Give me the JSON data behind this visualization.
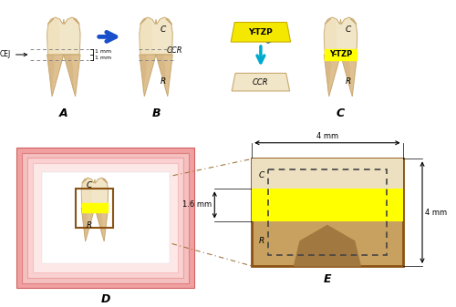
{
  "bg_color": "#ffffff",
  "tooth_color": "#f2e6c8",
  "tooth_light": "#f8f2e0",
  "tooth_mid": "#eddbb0",
  "tooth_root_color": "#dfc090",
  "tooth_root_dark": "#c9a870",
  "yellow_color": "#ffff00",
  "ytzp_yellow": "#f5e800",
  "arrow_blue": "#1a4fcc",
  "arrow_cyan": "#00aacc",
  "arrow_red": "#cc2200",
  "brown_border": "#8B5213",
  "pink_bg": "#f0a0a0",
  "pink_mid": "#f5c0c0",
  "pink_inner": "#fad0d0",
  "pink_innermost": "#fde8e8",
  "white_inner": "#ffffff",
  "dashed_color": "#444444",
  "gray_line": "#888888",
  "label_A": "A",
  "label_B": "B",
  "label_C": "C",
  "label_D": "D",
  "label_E": "E",
  "label_CEJ": "CEJ",
  "label_C_crown": "C",
  "label_R_root": "R",
  "label_CCR": "CCR",
  "label_YTZP": "Y-TZP",
  "dim_4mm_top": "4 mm",
  "dim_4mm_right": "4 mm",
  "dim_16mm": "1.6 mm",
  "mm1": "1 mm",
  "mm2": "1 mm",
  "panel_label_fontsize": 9,
  "small_label_fontsize": 6.5,
  "ccr_fontsize": 6,
  "ytzp_fontsize": 6,
  "dim_fontsize": 6
}
